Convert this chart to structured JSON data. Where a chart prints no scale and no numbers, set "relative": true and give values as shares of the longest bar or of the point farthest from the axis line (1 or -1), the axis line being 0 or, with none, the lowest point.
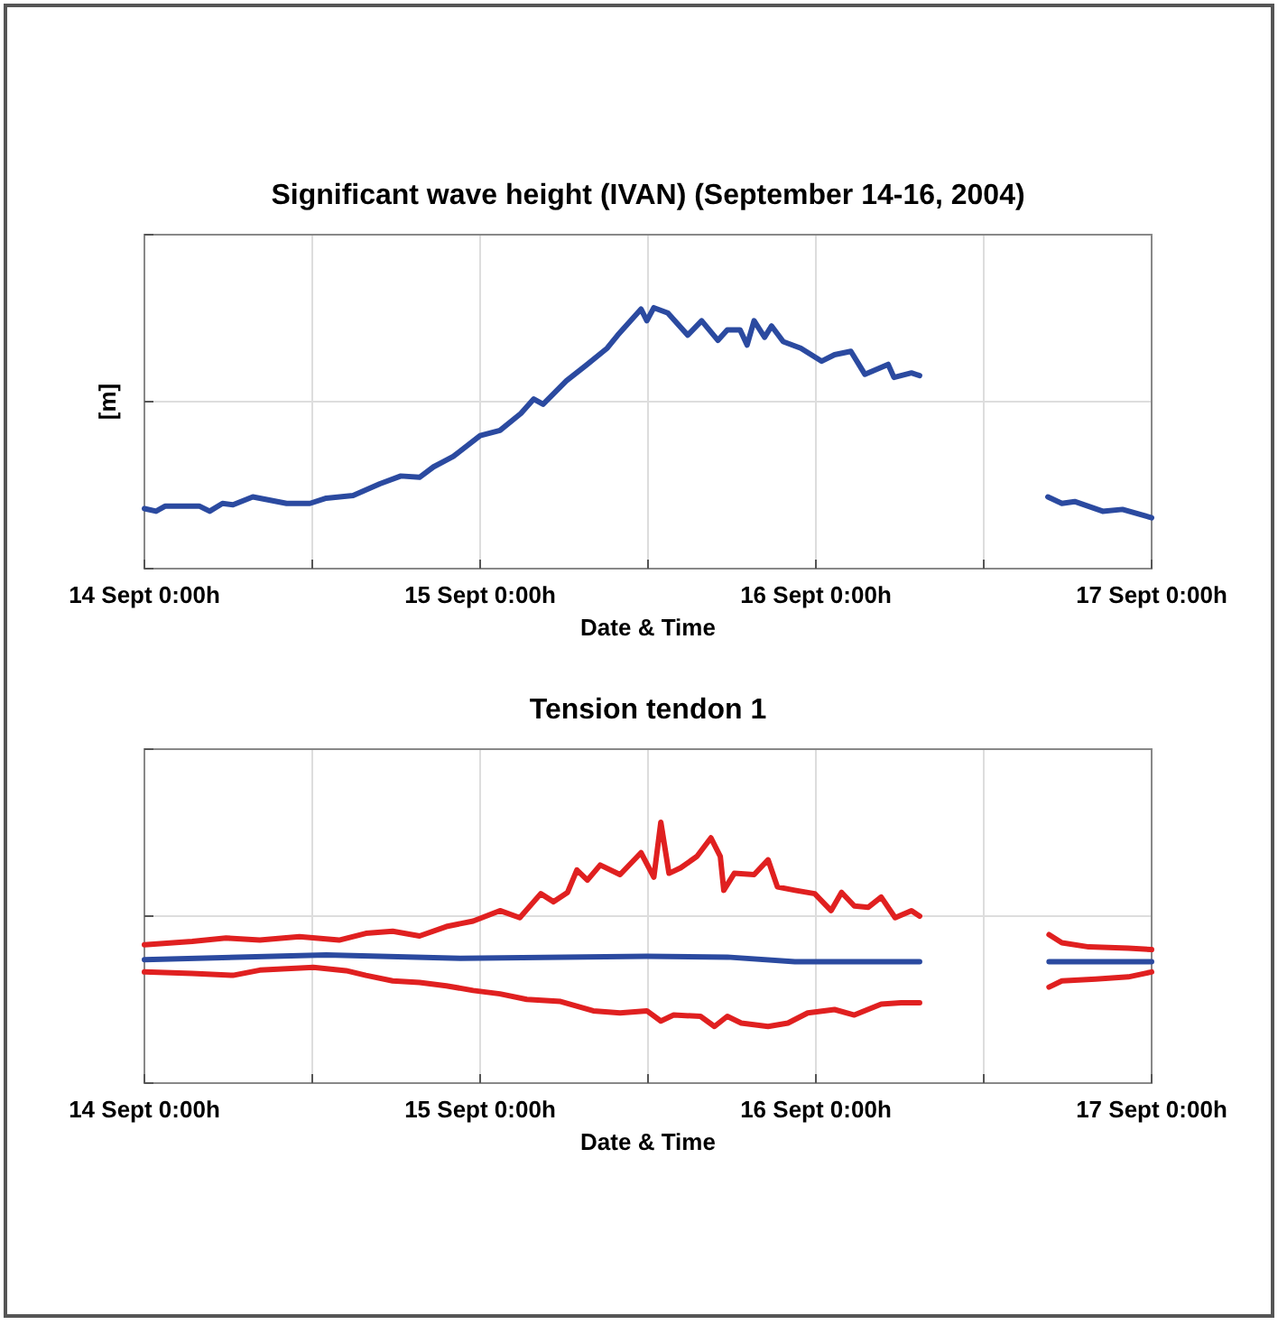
{
  "chart_data": [
    {
      "type": "line",
      "title": "Significant wave height (IVAN) (September 14-16, 2004)",
      "xlabel": "Date & Time",
      "ylabel": "[m]",
      "relative": true,
      "grid": true,
      "marker": "none",
      "line_style": "solid",
      "xlim": [
        "2004-09-14T00:00",
        "2004-09-17T00:00"
      ],
      "xticks": [
        {
          "value": "2004-09-14T00:00",
          "label": "14 Sept 0:00h"
        },
        {
          "value": "2004-09-14T12:00",
          "label": null
        },
        {
          "value": "2004-09-15T00:00",
          "label": "15 Sept 0:00h"
        },
        {
          "value": "2004-09-15T12:00",
          "label": null
        },
        {
          "value": "2004-09-16T00:00",
          "label": "16 Sept 0:00h"
        },
        {
          "value": "2004-09-16T12:00",
          "label": null
        },
        {
          "value": "2004-09-17T00:00",
          "label": "17 Sept 0:00h"
        }
      ],
      "series": [
        {
          "color": "#2b4aa0",
          "x": [
            "2004-09-14T00:00",
            "2004-09-14T00:50",
            "2004-09-14T01:30",
            "2004-09-14T03:55",
            "2004-09-14T04:40",
            "2004-09-14T05:35",
            "2004-09-14T06:20",
            "2004-09-14T07:45",
            "2004-09-14T10:10",
            "2004-09-14T11:50",
            "2004-09-14T13:00",
            "2004-09-14T14:55",
            "2004-09-14T16:50",
            "2004-09-14T18:20",
            "2004-09-14T19:40",
            "2004-09-14T20:40",
            "2004-09-14T22:05",
            "2004-09-15T00:00",
            "2004-09-15T01:25",
            "2004-09-15T02:55",
            "2004-09-15T03:50",
            "2004-09-15T04:30",
            "2004-09-15T06:10",
            "2004-09-15T07:35",
            "2004-09-15T09:05",
            "2004-09-15T09:50",
            "2004-09-15T11:30",
            "2004-09-15T11:55",
            "2004-09-15T12:25",
            "2004-09-15T13:25",
            "2004-09-15T14:50",
            "2004-09-15T15:50",
            "2004-09-15T17:00",
            "2004-09-15T17:40",
            "2004-09-15T18:35",
            "2004-09-15T19:05",
            "2004-09-15T19:35",
            "2004-09-15T20:20",
            "2004-09-15T20:50",
            "2004-09-15T21:40",
            "2004-09-15T22:55",
            "2004-09-16T00:25",
            "2004-09-16T01:20",
            "2004-09-16T02:30",
            "2004-09-16T03:30",
            "2004-09-16T05:10",
            "2004-09-16T05:35",
            "2004-09-16T06:50",
            "2004-09-16T07:25",
            "2004-09-16T12:00",
            "2004-09-16T16:35",
            "2004-09-16T17:35",
            "2004-09-16T18:30",
            "2004-09-16T20:30",
            "2004-09-16T21:55",
            "2004-09-17T00:00"
          ],
          "values": [
            0.23,
            0.22,
            0.24,
            0.24,
            0.22,
            0.25,
            0.245,
            0.275,
            0.25,
            0.25,
            0.27,
            0.28,
            0.325,
            0.355,
            0.35,
            0.39,
            0.43,
            0.51,
            0.53,
            0.595,
            0.65,
            0.63,
            0.72,
            0.78,
            0.845,
            0.895,
            0.995,
            0.95,
            1,
            0.98,
            0.895,
            0.95,
            0.875,
            0.915,
            0.915,
            0.857,
            0.95,
            0.887,
            0.93,
            0.87,
            0.845,
            0.795,
            0.82,
            0.833,
            0.745,
            0.783,
            0.733,
            0.75,
            0.74,
            null,
            0.275,
            0.25,
            0.257,
            0.22,
            0.227,
            0.195
          ]
        }
      ]
    },
    {
      "type": "line",
      "title": "Tension tendon 1",
      "xlabel": "Date & Time",
      "relative": true,
      "grid": true,
      "marker": "none",
      "line_style": "solid",
      "xlim": [
        "2004-09-14T00:00",
        "2004-09-17T00:00"
      ],
      "xticks": [
        {
          "value": "2004-09-14T00:00",
          "label": "14 Sept 0:00h"
        },
        {
          "value": "2004-09-14T12:00",
          "label": null
        },
        {
          "value": "2004-09-15T00:00",
          "label": "15 Sept 0:00h"
        },
        {
          "value": "2004-09-15T12:00",
          "label": null
        },
        {
          "value": "2004-09-16T00:00",
          "label": "16 Sept 0:00h"
        },
        {
          "value": "2004-09-16T12:00",
          "label": null
        },
        {
          "value": "2004-09-17T00:00",
          "label": "17 Sept 0:00h"
        }
      ],
      "series": [
        {
          "color": "#e02020",
          "x": [
            "2004-09-14T00:00",
            "2004-09-14T03:25",
            "2004-09-14T05:50",
            "2004-09-14T08:15",
            "2004-09-14T11:05",
            "2004-09-14T13:55",
            "2004-09-14T15:50",
            "2004-09-14T17:45",
            "2004-09-14T19:40",
            "2004-09-14T21:35",
            "2004-09-14T23:30",
            "2004-09-15T01:25",
            "2004-09-15T02:50",
            "2004-09-15T04:20",
            "2004-09-15T05:15",
            "2004-09-15T06:15",
            "2004-09-15T06:55",
            "2004-09-15T07:40",
            "2004-09-15T08:35",
            "2004-09-15T10:00",
            "2004-09-15T11:30",
            "2004-09-15T12:25",
            "2004-09-15T12:55",
            "2004-09-15T13:30",
            "2004-09-15T14:20",
            "2004-09-15T15:30",
            "2004-09-15T16:30",
            "2004-09-15T17:10",
            "2004-09-15T17:25",
            "2004-09-15T18:10",
            "2004-09-15T19:35",
            "2004-09-15T20:35",
            "2004-09-15T21:15",
            "2004-09-15T22:30",
            "2004-09-15T23:55",
            "2004-09-16T01:05",
            "2004-09-16T01:50",
            "2004-09-16T02:45",
            "2004-09-16T03:45",
            "2004-09-16T04:40",
            "2004-09-16T05:40",
            "2004-09-16T06:50",
            "2004-09-16T07:25",
            "2004-09-16T12:00",
            "2004-09-16T16:40",
            "2004-09-16T17:35",
            "2004-09-16T19:30",
            "2004-09-16T22:20",
            "2004-09-17T00:00"
          ],
          "values": [
            0.53,
            0.543,
            0.556,
            0.548,
            0.561,
            0.548,
            0.574,
            0.582,
            0.564,
            0.6,
            0.621,
            0.661,
            0.634,
            0.726,
            0.695,
            0.731,
            0.817,
            0.778,
            0.836,
            0.799,
            0.883,
            0.789,
            1,
            0.804,
            0.825,
            0.869,
            0.94,
            0.869,
            0.739,
            0.804,
            0.799,
            0.856,
            0.752,
            0.739,
            0.726,
            0.661,
            0.731,
            0.679,
            0.674,
            0.713,
            0.634,
            0.661,
            0.64,
            null,
            0.569,
            0.538,
            0.522,
            0.517,
            0.512
          ]
        },
        {
          "color": "#2b4aa0",
          "x": [
            "2004-09-14T00:00",
            "2004-09-14T13:00",
            "2004-09-14T22:35",
            "2004-09-15T11:55",
            "2004-09-15T17:40",
            "2004-09-15T22:30",
            "2004-09-16T07:25",
            "2004-09-16T12:00",
            "2004-09-16T16:40",
            "2004-09-17T00:00"
          ],
          "values": [
            0.473,
            0.491,
            0.478,
            0.486,
            0.483,
            0.465,
            0.465,
            null,
            0.465,
            0.465
          ]
        },
        {
          "color": "#e02020",
          "x": [
            "2004-09-14T00:00",
            "2004-09-14T03:25",
            "2004-09-14T06:20",
            "2004-09-14T08:15",
            "2004-09-14T12:05",
            "2004-09-14T14:25",
            "2004-09-14T15:50",
            "2004-09-14T17:45",
            "2004-09-14T19:40",
            "2004-09-14T21:35",
            "2004-09-14T23:30",
            "2004-09-15T01:25",
            "2004-09-15T03:20",
            "2004-09-15T05:45",
            "2004-09-15T08:05",
            "2004-09-15T10:00",
            "2004-09-15T11:55",
            "2004-09-15T12:55",
            "2004-09-15T13:50",
            "2004-09-15T15:45",
            "2004-09-15T16:45",
            "2004-09-15T17:40",
            "2004-09-15T18:40",
            "2004-09-15T20:35",
            "2004-09-15T22:00",
            "2004-09-15T23:25",
            "2004-09-16T01:20",
            "2004-09-16T02:45",
            "2004-09-16T04:40",
            "2004-09-16T06:05",
            "2004-09-16T07:25",
            "2004-09-16T12:00",
            "2004-09-16T16:40",
            "2004-09-16T17:35",
            "2004-09-16T20:00",
            "2004-09-16T22:20",
            "2004-09-17T00:00"
          ],
          "values": [
            0.426,
            0.42,
            0.413,
            0.433,
            0.444,
            0.431,
            0.413,
            0.392,
            0.386,
            0.373,
            0.355,
            0.342,
            0.321,
            0.313,
            0.277,
            0.269,
            0.277,
            0.238,
            0.261,
            0.256,
            0.217,
            0.256,
            0.23,
            0.217,
            0.23,
            0.269,
            0.282,
            0.261,
            0.303,
            0.308,
            0.308,
            null,
            0.368,
            0.392,
            0.399,
            0.407,
            0.426
          ]
        }
      ]
    }
  ]
}
